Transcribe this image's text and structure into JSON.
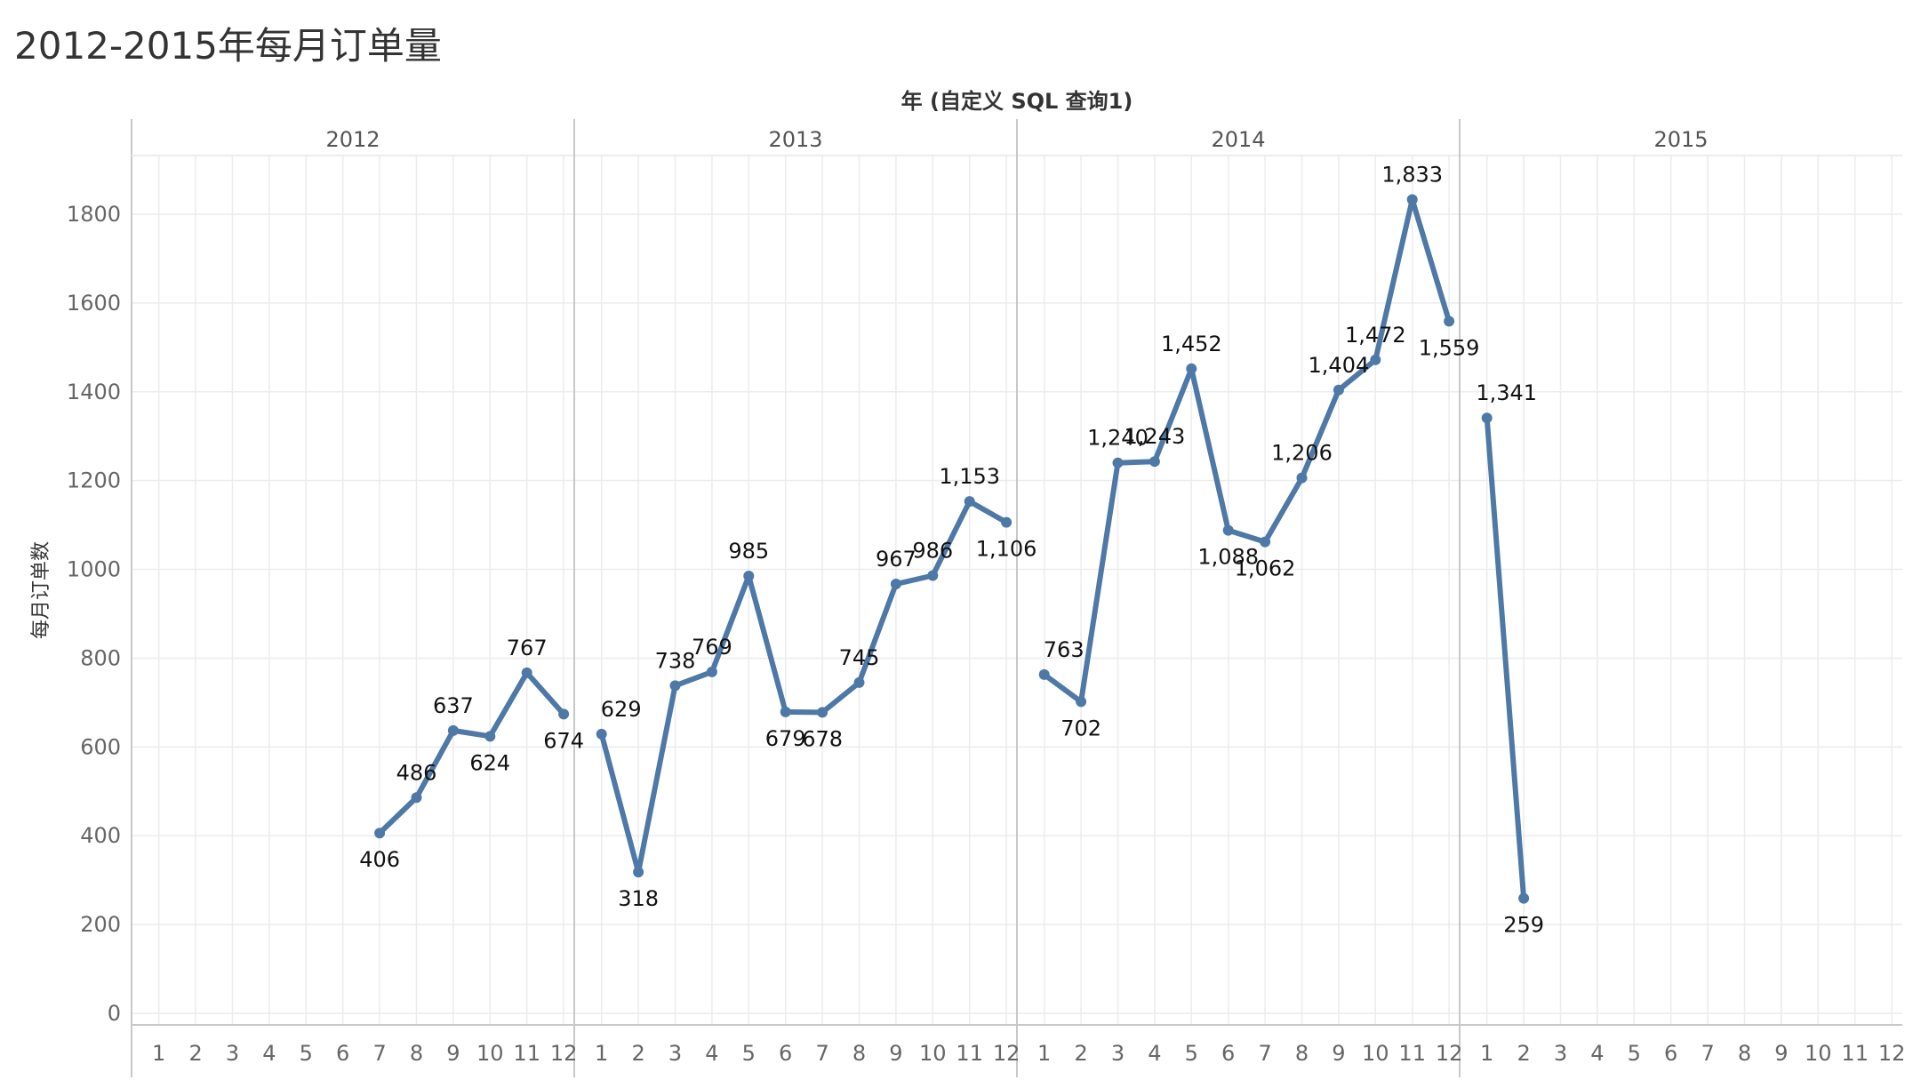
{
  "title": "2012-2015年每月订单量",
  "colors": {
    "line": "#4e79a7",
    "grid": "#ececec",
    "divider": "#c8c8c8",
    "text": "#333333",
    "muted": "#666666"
  },
  "chart_data": {
    "type": "line",
    "column_header_title": "年 (自定义 SQL 查询1)",
    "ylabel": "每月订单数",
    "ylim": [
      0,
      1900
    ],
    "yticks": [
      0,
      200,
      400,
      600,
      800,
      1000,
      1200,
      1400,
      1600,
      1800
    ],
    "grid": true,
    "x_tick_labels": [
      "1",
      "2",
      "3",
      "4",
      "5",
      "6",
      "7",
      "8",
      "9",
      "10",
      "11",
      "12"
    ],
    "panes": [
      {
        "year": "2012",
        "points": [
          {
            "month": 7,
            "value": 406,
            "label": "406"
          },
          {
            "month": 8,
            "value": 486,
            "label": "486"
          },
          {
            "month": 9,
            "value": 637,
            "label": "637"
          },
          {
            "month": 10,
            "value": 624,
            "label": "624"
          },
          {
            "month": 11,
            "value": 767,
            "label": "767"
          },
          {
            "month": 12,
            "value": 674,
            "label": "674"
          }
        ]
      },
      {
        "year": "2013",
        "points": [
          {
            "month": 1,
            "value": 629,
            "label": "629"
          },
          {
            "month": 2,
            "value": 318,
            "label": "318"
          },
          {
            "month": 3,
            "value": 738,
            "label": "738"
          },
          {
            "month": 4,
            "value": 769,
            "label": "769"
          },
          {
            "month": 5,
            "value": 985,
            "label": "985"
          },
          {
            "month": 6,
            "value": 679,
            "label": "679"
          },
          {
            "month": 7,
            "value": 678,
            "label": "678"
          },
          {
            "month": 8,
            "value": 745,
            "label": "745"
          },
          {
            "month": 9,
            "value": 967,
            "label": "967"
          },
          {
            "month": 10,
            "value": 986,
            "label": "986"
          },
          {
            "month": 11,
            "value": 1153,
            "label": "1,153"
          },
          {
            "month": 12,
            "value": 1106,
            "label": "1,106"
          }
        ]
      },
      {
        "year": "2014",
        "points": [
          {
            "month": 1,
            "value": 763,
            "label": "763"
          },
          {
            "month": 2,
            "value": 702,
            "label": "702"
          },
          {
            "month": 3,
            "value": 1240,
            "label": "1,240"
          },
          {
            "month": 4,
            "value": 1243,
            "label": "1,243"
          },
          {
            "month": 5,
            "value": 1452,
            "label": "1,452"
          },
          {
            "month": 6,
            "value": 1088,
            "label": "1,088"
          },
          {
            "month": 7,
            "value": 1062,
            "label": "1,062"
          },
          {
            "month": 8,
            "value": 1206,
            "label": "1,206"
          },
          {
            "month": 9,
            "value": 1404,
            "label": "1,404"
          },
          {
            "month": 10,
            "value": 1472,
            "label": "1,472"
          },
          {
            "month": 11,
            "value": 1833,
            "label": "1,833"
          },
          {
            "month": 12,
            "value": 1559,
            "label": "1,559"
          }
        ]
      },
      {
        "year": "2015",
        "points": [
          {
            "month": 1,
            "value": 1341,
            "label": "1,341"
          },
          {
            "month": 2,
            "value": 259,
            "label": "259"
          }
        ]
      }
    ]
  }
}
